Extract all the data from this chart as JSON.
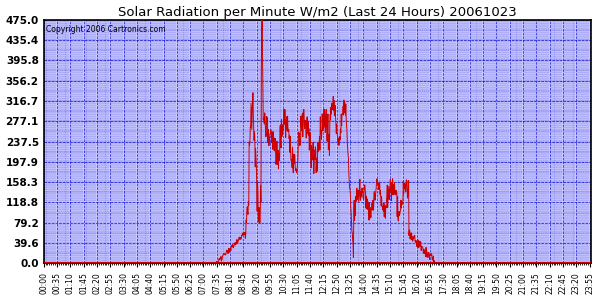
{
  "title": "Solar Radiation per Minute W/m2 (Last 24 Hours) 20061023",
  "copyright_text": "Copyright 2006 Cartronics.com",
  "background_color": "#c8c8ff",
  "line_color": "#cc0000",
  "grid_color": "#0000cc",
  "title_color": "#000000",
  "ylabel_values": [
    0.0,
    39.6,
    79.2,
    118.8,
    158.3,
    197.9,
    237.5,
    277.1,
    316.7,
    356.2,
    395.8,
    435.4,
    475.0
  ],
  "ymax": 475.0,
  "ymin": 0.0,
  "num_time_points": 1440,
  "x_tick_interval": 35,
  "border_color": "#000000",
  "outer_bg": "#ffffff"
}
